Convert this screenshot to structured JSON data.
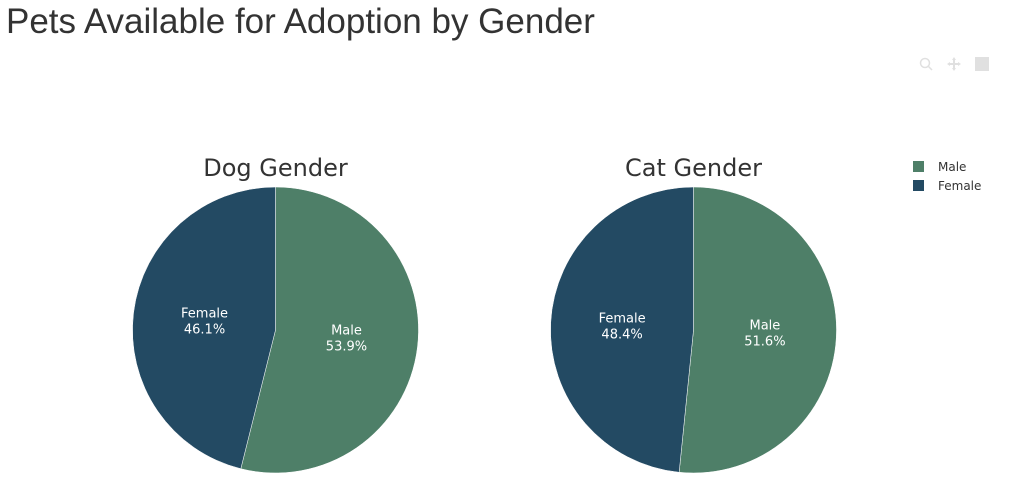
{
  "title": "Pets Available for Adoption by Gender",
  "colors": {
    "Male": "#4e7f68",
    "Female": "#234a63"
  },
  "legend": {
    "placement": "top-right",
    "items": [
      "Male",
      "Female"
    ]
  },
  "modebar": {
    "icons": [
      "zoom-icon",
      "pan-icon",
      "reset-icon"
    ]
  },
  "chart_data": [
    {
      "type": "pie",
      "title": "Dog Gender",
      "labels": [
        "Male",
        "Female"
      ],
      "values": [
        53.9,
        46.1
      ],
      "text": [
        "53.9%",
        "46.1%"
      ]
    },
    {
      "type": "pie",
      "title": "Cat Gender",
      "labels": [
        "Male",
        "Female"
      ],
      "values": [
        51.6,
        48.4
      ],
      "text": [
        "51.6%",
        "48.4%"
      ]
    }
  ]
}
